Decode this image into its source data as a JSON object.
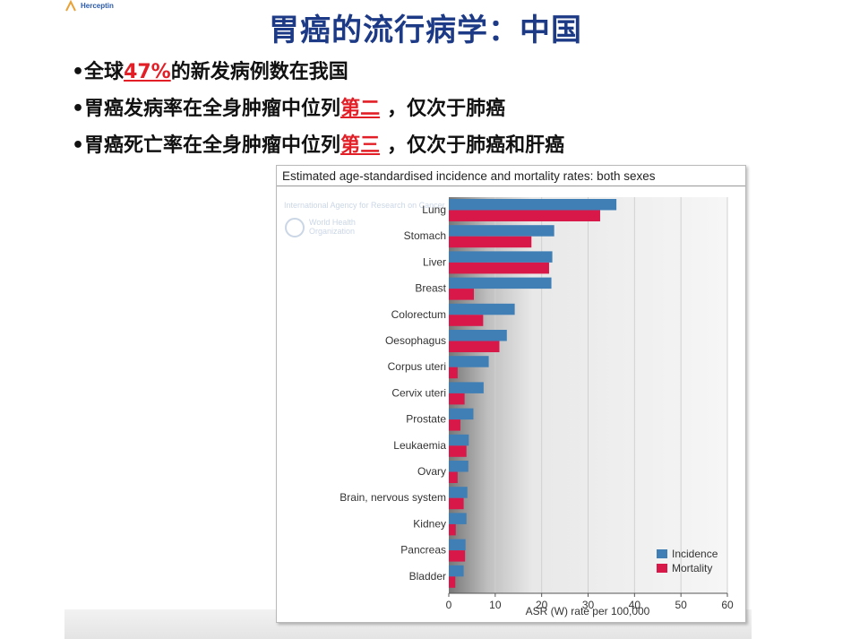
{
  "logo": {
    "text": "Herceptin"
  },
  "slide": {
    "title": "胃癌的流行病学：中国",
    "bullets": [
      {
        "prefix": "•全球",
        "highlight": "47%",
        "suffix": "的新发病例数在我国"
      },
      {
        "prefix": "•胃癌发病率在全身肿瘤中位列",
        "highlight": "第二",
        "suffix": "，仅次于肺癌"
      },
      {
        "prefix": "•胃癌死亡率在全身肿瘤中位列",
        "highlight": "第三",
        "suffix": "，仅次于肺癌和肝癌"
      }
    ]
  },
  "watermark": {
    "agency": "International Agency for Research on Cancer",
    "who": [
      "World Health",
      "Organization"
    ]
  },
  "chart_data": {
    "type": "bar",
    "orientation": "horizontal",
    "title": "Estimated age-standardised incidence and mortality rates: both sexes",
    "xlabel": "ASR (W) rate per 100,000",
    "ylabel": "",
    "xlim": [
      0,
      60
    ],
    "xticks": [
      0,
      10,
      20,
      30,
      40,
      50,
      60
    ],
    "grid": true,
    "legend_position": "bottom-right",
    "categories": [
      "Lung",
      "Stomach",
      "Liver",
      "Breast",
      "Colorectum",
      "Oesophagus",
      "Corpus uteri",
      "Cervix uteri",
      "Prostate",
      "Leukaemia",
      "Ovary",
      "Brain, nervous system",
      "Kidney",
      "Pancreas",
      "Bladder"
    ],
    "series": [
      {
        "name": "Incidence",
        "color": "#3f7fb6",
        "values": [
          36.1,
          22.7,
          22.3,
          22.1,
          14.2,
          12.5,
          8.6,
          7.5,
          5.3,
          4.3,
          4.2,
          4.0,
          3.8,
          3.6,
          3.2
        ]
      },
      {
        "name": "Mortality",
        "color": "#d9184a",
        "values": [
          32.6,
          17.8,
          21.6,
          5.4,
          7.4,
          10.9,
          1.9,
          3.4,
          2.5,
          3.8,
          1.9,
          3.2,
          1.5,
          3.5,
          1.4
        ]
      }
    ]
  }
}
